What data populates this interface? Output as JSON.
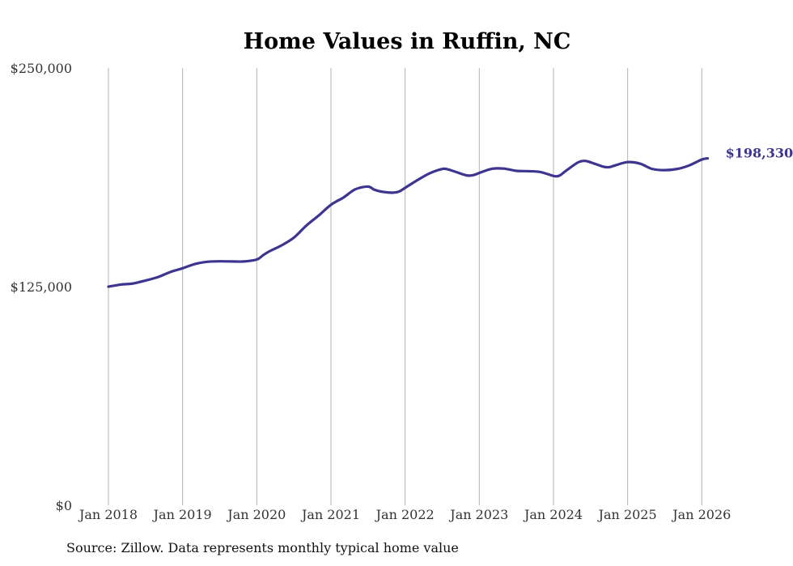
{
  "chart_data": {
    "type": "line",
    "title": "Home Values in Ruffin, NC",
    "xlabel": "",
    "ylabel": "",
    "ylim": [
      0,
      250000
    ],
    "y_ticks": [
      {
        "value": 0,
        "label": "$0"
      },
      {
        "value": 125000,
        "label": "$125,000"
      },
      {
        "value": 250000,
        "label": "$250,000"
      }
    ],
    "x_ticks": [
      {
        "value": 2018.0,
        "label": "Jan 2018"
      },
      {
        "value": 2019.0,
        "label": "Jan 2019"
      },
      {
        "value": 2020.0,
        "label": "Jan 2020"
      },
      {
        "value": 2021.0,
        "label": "Jan 2021"
      },
      {
        "value": 2022.0,
        "label": "Jan 2022"
      },
      {
        "value": 2023.0,
        "label": "Jan 2023"
      },
      {
        "value": 2024.0,
        "label": "Jan 2024"
      },
      {
        "value": 2025.0,
        "label": "Jan 2025"
      },
      {
        "value": 2026.0,
        "label": "Jan 2026"
      }
    ],
    "xlim": [
      2018.0,
      2026.08
    ],
    "grid": "vertical",
    "series": [
      {
        "name": "Typical home value",
        "color": "#3d3590",
        "end_label": "$198,330",
        "x": [
          2018.0,
          2018.17,
          2018.33,
          2018.5,
          2018.67,
          2018.83,
          2019.0,
          2019.17,
          2019.33,
          2019.5,
          2019.67,
          2019.83,
          2020.0,
          2020.08,
          2020.17,
          2020.33,
          2020.5,
          2020.67,
          2020.83,
          2021.0,
          2021.17,
          2021.33,
          2021.5,
          2021.58,
          2021.67,
          2021.83,
          2021.92,
          2022.0,
          2022.17,
          2022.33,
          2022.5,
          2022.58,
          2022.67,
          2022.83,
          2022.92,
          2023.0,
          2023.17,
          2023.33,
          2023.5,
          2023.67,
          2023.83,
          2024.0,
          2024.08,
          2024.17,
          2024.33,
          2024.42,
          2024.5,
          2024.67,
          2024.75,
          2024.83,
          2025.0,
          2025.17,
          2025.33,
          2025.5,
          2025.67,
          2025.83,
          2026.0,
          2026.08
        ],
        "values": [
          125000,
          126200,
          126800,
          128500,
          130500,
          133300,
          135500,
          138000,
          139200,
          139500,
          139400,
          139400,
          140500,
          142800,
          145200,
          148500,
          153000,
          160000,
          165500,
          171800,
          176000,
          180700,
          182200,
          180500,
          179400,
          178700,
          179400,
          181500,
          186000,
          189800,
          192300,
          192000,
          190800,
          188600,
          188800,
          190000,
          192400,
          192500,
          191200,
          191000,
          190500,
          188300,
          188500,
          191300,
          196000,
          196900,
          196100,
          193600,
          193300,
          194300,
          196200,
          195300,
          192300,
          191600,
          192300,
          194300,
          197700,
          198330
        ]
      }
    ]
  },
  "source": "Source: Zillow. Data represents monthly typical home value"
}
